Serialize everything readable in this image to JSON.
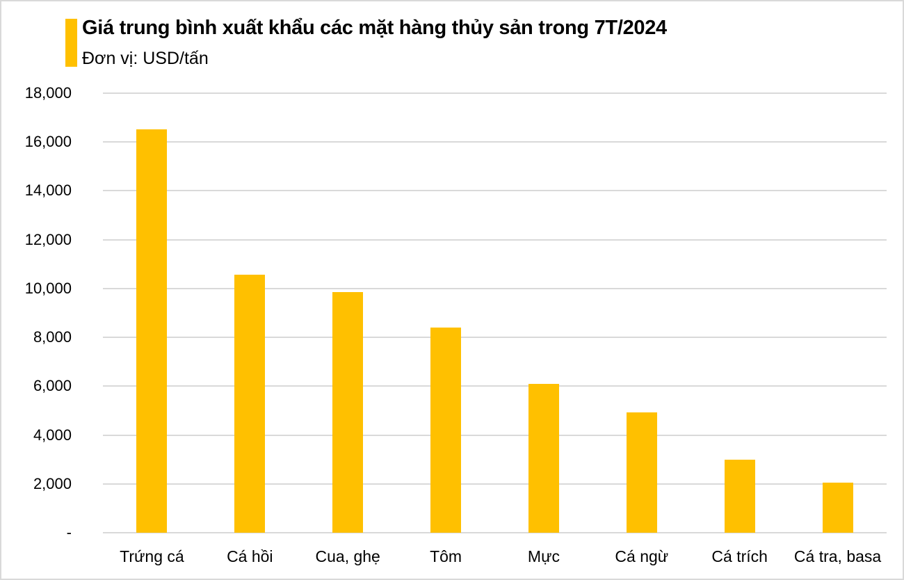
{
  "header": {
    "title": "Giá trung bình xuất khẩu các mặt hàng thủy sản trong 7T/2024",
    "subtitle": "Đơn vị: USD/tấn",
    "accent_color": "#FFC000"
  },
  "colors": {
    "bar": "#FFC000",
    "grid": "#D9D9D9",
    "text": "#000000"
  },
  "y_axis": {
    "ticks": [
      "-",
      "2,000",
      "4,000",
      "6,000",
      "8,000",
      "10,000",
      "12,000",
      "14,000",
      "16,000",
      "18,000"
    ]
  },
  "chart_data": {
    "type": "bar",
    "title": "Giá trung bình xuất khẩu các mặt hàng thủy sản trong 7T/2024",
    "subtitle": "Đơn vị: USD/tấn",
    "xlabel": "",
    "ylabel": "USD/tấn",
    "categories": [
      "Trứng cá",
      "Cá hồi",
      "Cua, ghẹ",
      "Tôm",
      "Mực",
      "Cá ngừ",
      "Cá trích",
      "Cá tra, basa"
    ],
    "values": [
      16530,
      10570,
      9850,
      8400,
      6090,
      4930,
      2990,
      2050
    ],
    "ylim": [
      0,
      18000
    ],
    "yticks": [
      0,
      2000,
      4000,
      6000,
      8000,
      10000,
      12000,
      14000,
      16000,
      18000
    ],
    "grid": true,
    "legend": "none"
  }
}
